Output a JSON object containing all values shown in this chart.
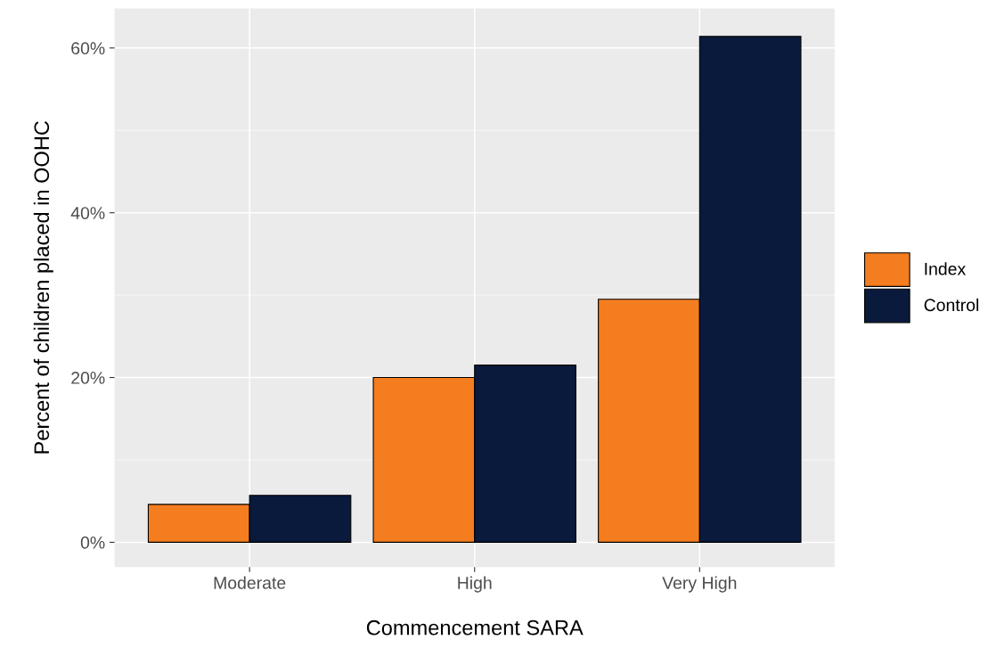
{
  "chart_data": {
    "type": "bar",
    "xlabel": "Commencement SARA",
    "ylabel": "Percent of children placed in OOHC",
    "categories": [
      "Moderate",
      "High",
      "Very High"
    ],
    "series": [
      {
        "name": "Index",
        "color": "#f47d20",
        "values": [
          4.6,
          20.0,
          29.5
        ]
      },
      {
        "name": "Control",
        "color": "#0a1a3c",
        "values": [
          5.7,
          21.5,
          61.4
        ]
      }
    ],
    "ylim": [
      -3.0,
      64.8
    ],
    "yticks": [
      {
        "value": 0,
        "label": "0%"
      },
      {
        "value": 20,
        "label": "20%"
      },
      {
        "value": 40,
        "label": "40%"
      },
      {
        "value": 60,
        "label": "60%"
      }
    ],
    "grid": true,
    "legend": "right"
  }
}
